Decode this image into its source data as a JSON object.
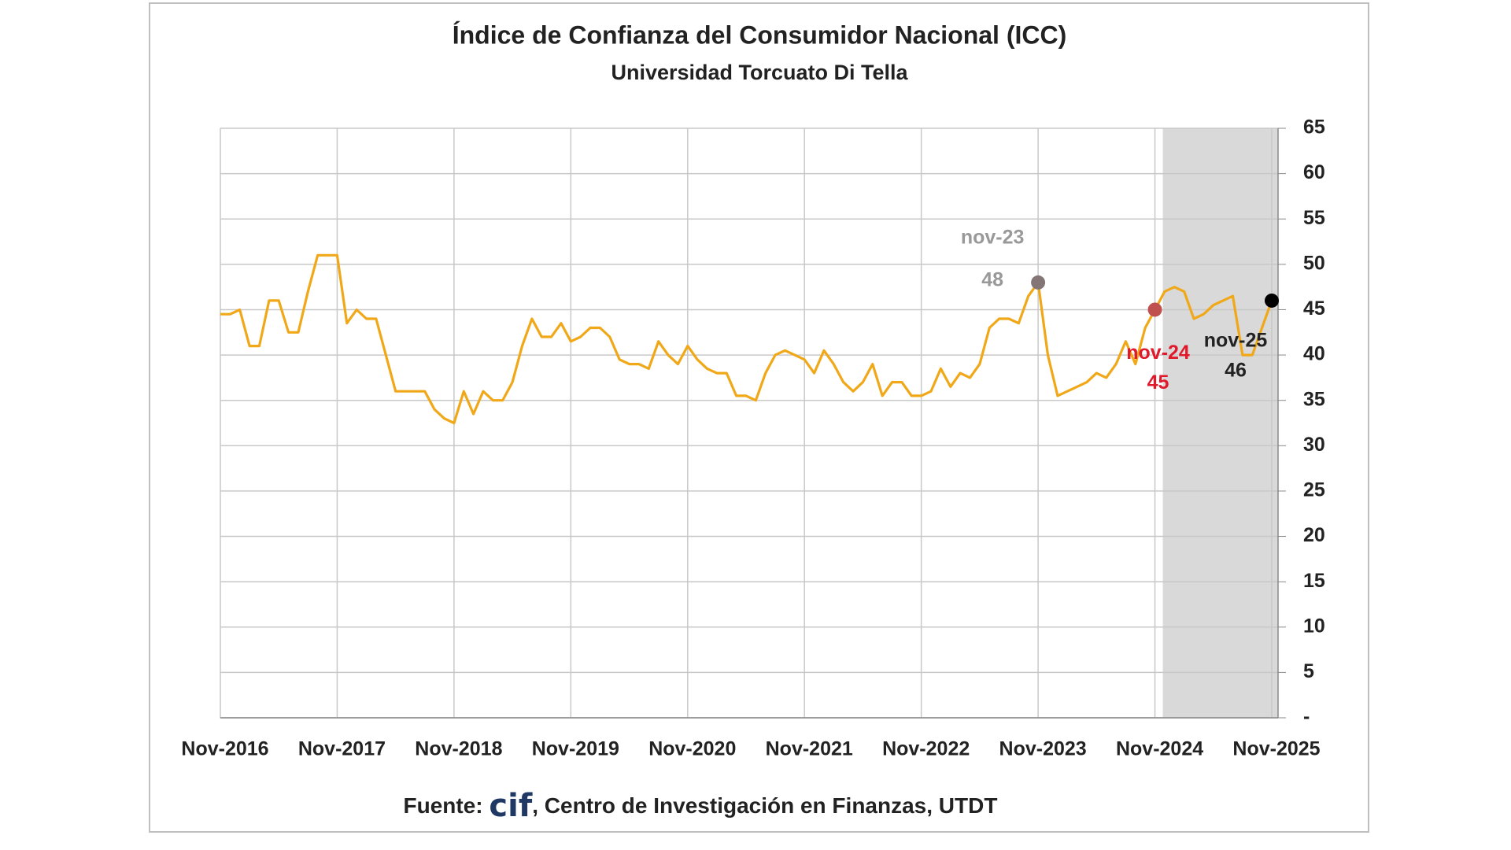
{
  "chart_data": {
    "type": "line",
    "title": "Índice de Confianza del Consumidor Nacional (ICC)",
    "subtitle": "Universidad Torcuato Di Tella",
    "source_prefix": "Fuente:",
    "source_logo": "cif",
    "source_rest": ", Centro de Investigación en Finanzas, UTDT",
    "categories": [
      "Nov-2016",
      null,
      null,
      null,
      null,
      null,
      null,
      null,
      null,
      null,
      null,
      null,
      "Nov-2017",
      null,
      null,
      null,
      null,
      null,
      null,
      null,
      null,
      null,
      null,
      null,
      "Nov-2018",
      null,
      null,
      null,
      null,
      null,
      null,
      null,
      null,
      null,
      null,
      null,
      "Nov-2019",
      null,
      null,
      null,
      null,
      null,
      null,
      null,
      null,
      null,
      null,
      null,
      "Nov-2020",
      null,
      null,
      null,
      null,
      null,
      null,
      null,
      null,
      null,
      null,
      null,
      "Nov-2021",
      null,
      null,
      null,
      null,
      null,
      null,
      null,
      null,
      null,
      null,
      null,
      "Nov-2022",
      null,
      null,
      null,
      null,
      null,
      null,
      null,
      null,
      null,
      null,
      null,
      "Nov-2023",
      null,
      null,
      null,
      null,
      null,
      null,
      null,
      null,
      null,
      null,
      null,
      "Nov-2024",
      null,
      null,
      null,
      null,
      null,
      null,
      null,
      null,
      null,
      null,
      null,
      "Nov-2025"
    ],
    "series": [
      {
        "name": "ICC",
        "color": "#f0a818",
        "values": [
          44.5,
          44.5,
          45,
          41,
          41,
          46,
          46,
          42.5,
          42.5,
          47,
          51,
          51,
          51,
          43.5,
          45,
          44,
          44,
          40,
          36,
          36,
          36,
          36,
          34,
          33,
          32.5,
          36,
          33.5,
          36,
          35,
          35,
          37,
          41,
          44,
          42,
          42,
          43.5,
          41.5,
          42,
          43,
          43,
          42,
          39.5,
          39,
          39,
          38.5,
          41.5,
          40,
          39,
          41,
          39.5,
          38.5,
          38,
          38,
          35.5,
          35.5,
          35,
          38,
          40,
          40.5,
          40,
          39.5,
          38,
          40.5,
          39,
          37,
          36,
          37,
          39,
          35.5,
          37,
          37,
          35.5,
          35.5,
          36,
          38.5,
          36.5,
          38,
          37.5,
          39,
          43,
          44,
          44,
          43.5,
          46.5,
          48,
          40,
          35.5,
          36,
          36.5,
          37,
          38,
          37.5,
          39,
          41.5,
          39,
          43,
          45,
          47,
          47.5,
          47,
          44,
          44.5,
          45.5,
          46,
          46.5,
          40,
          40,
          43,
          46
        ]
      }
    ],
    "annotations": [
      {
        "label": "nov-23",
        "value": 48,
        "color": "#999999",
        "dot_color": "#847676"
      },
      {
        "label": "nov-24",
        "value": 45,
        "color": "#e0192b",
        "dot_color": "#c0504d"
      },
      {
        "label": "nov-25",
        "value": 46,
        "color": "#222222",
        "dot_color": "#000000"
      }
    ],
    "shaded_range": [
      "Nov-2024",
      "Nov-2025"
    ],
    "shade_color": "#d9d9d9",
    "ylim": [
      0,
      65
    ],
    "yticks": [
      {
        "value": 0,
        "label": "-"
      },
      5,
      10,
      15,
      20,
      25,
      30,
      35,
      40,
      45,
      50,
      55,
      60,
      65
    ],
    "y_axis_side": "right",
    "grid": true
  }
}
